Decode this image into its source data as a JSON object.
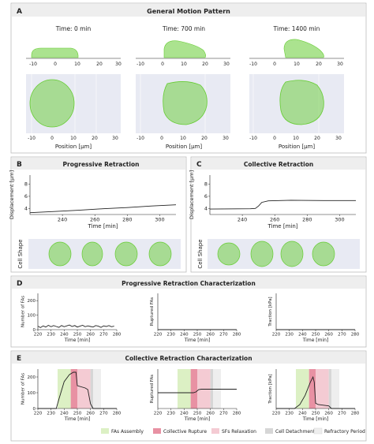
{
  "panels": {
    "A": {
      "letter": "A",
      "title": "General Motion Pattern",
      "snapshots": [
        {
          "time_label": "Time: 0 min"
        },
        {
          "time_label": "Time: 700 min"
        },
        {
          "time_label": "Time: 1400 min"
        }
      ],
      "side_ticks": [
        "-10",
        "0",
        "10",
        "20",
        "30"
      ],
      "top_ticks": [
        "-10",
        "0",
        "10",
        "20",
        "30"
      ],
      "xlabel": "Position [μm]"
    },
    "B": {
      "letter": "B",
      "title": "Progressive Retraction",
      "cell_shape_label": "Cell Shape"
    },
    "C": {
      "letter": "C",
      "title": "Collective Retraction",
      "cell_shape_label": "Cell Shape"
    },
    "D": {
      "letter": "D",
      "title": "Progressive Retraction Characterization"
    },
    "E": {
      "letter": "E",
      "title": "Collective Retraction Characterization"
    }
  },
  "legend": [
    {
      "label": "FAs Assembly",
      "color": "#dcf0c4"
    },
    {
      "label": "Collective Rupture",
      "color": "#e891a3"
    },
    {
      "label": "SFs Relaxation",
      "color": "#f4cbd3"
    },
    {
      "label": "Cell Detachment",
      "color": "#d6d6d6"
    },
    {
      "label": "Refractory Period",
      "color": "#eeeeee"
    }
  ],
  "colors": {
    "cell": "#66cc33",
    "band": "#e8eaf3",
    "line": "#222222"
  },
  "chart_data": [
    {
      "id": "B-disp",
      "type": "line",
      "title": "",
      "xlabel": "Time [min]",
      "ylabel": "Displacement [μm]",
      "xlim": [
        220,
        310
      ],
      "ylim": [
        3,
        9.5
      ],
      "xticks": [
        240,
        260,
        280,
        300
      ],
      "yticks": [
        4,
        6,
        8
      ],
      "x": [
        220,
        235,
        250,
        265,
        280,
        295,
        310
      ],
      "y": [
        3.3,
        3.5,
        3.7,
        3.95,
        4.15,
        4.4,
        4.6
      ]
    },
    {
      "id": "C-disp",
      "type": "line",
      "title": "",
      "xlabel": "Time [min]",
      "ylabel": "Displacement [μm]",
      "xlim": [
        220,
        310
      ],
      "ylim": [
        3,
        9.5
      ],
      "xticks": [
        240,
        260,
        280,
        300
      ],
      "yticks": [
        4,
        6,
        8
      ],
      "x": [
        220,
        245,
        248,
        250,
        252,
        256,
        270,
        290,
        310
      ],
      "y": [
        3.9,
        3.95,
        4.0,
        4.4,
        5.0,
        5.25,
        5.35,
        5.3,
        5.3
      ]
    },
    {
      "id": "D-fas",
      "type": "line",
      "title": "",
      "xlabel": "Time [min]",
      "ylabel": "Number of FAs",
      "xlim": [
        220,
        280
      ],
      "ylim": [
        0,
        250
      ],
      "xticks": [
        220,
        230,
        240,
        250,
        260,
        270,
        280
      ],
      "yticks": [
        0,
        100,
        200
      ],
      "x": [
        220,
        222,
        224,
        226,
        228,
        230,
        232,
        234,
        236,
        238,
        240,
        242,
        244,
        246,
        248,
        250,
        252,
        254,
        256,
        258,
        260,
        262,
        264,
        266,
        268,
        270,
        272,
        274,
        276,
        278
      ],
      "y": [
        24,
        14,
        26,
        18,
        30,
        20,
        28,
        22,
        16,
        28,
        20,
        26,
        32,
        22,
        28,
        18,
        24,
        30,
        20,
        26,
        22,
        18,
        28,
        24,
        16,
        26,
        22,
        28,
        20,
        24
      ]
    },
    {
      "id": "D-rup",
      "type": "line",
      "title": "",
      "xlabel": "Time [min]",
      "ylabel": "Ruptured FAs",
      "xlim": [
        220,
        280
      ],
      "ylim": [
        0,
        400
      ],
      "xticks": [
        220,
        230,
        240,
        250,
        260,
        270,
        280
      ],
      "yticks": [],
      "x": [
        220,
        280
      ],
      "y": [
        0,
        0
      ]
    },
    {
      "id": "D-tr",
      "type": "line",
      "title": "",
      "xlabel": "Time [min]",
      "ylabel": "Traction [kPa]",
      "xlim": [
        220,
        280
      ],
      "ylim": [
        0,
        30
      ],
      "xticks": [
        220,
        230,
        240,
        250,
        260,
        270,
        280
      ],
      "yticks": [],
      "x": [
        220,
        280
      ],
      "y": [
        0,
        0
      ]
    },
    {
      "id": "E-fas",
      "type": "line",
      "title": "",
      "xlabel": "Time [min]",
      "ylabel": "Number of FAs",
      "xlim": [
        220,
        280
      ],
      "ylim": [
        0,
        250
      ],
      "xticks": [
        220,
        230,
        240,
        250,
        260,
        270,
        280
      ],
      "yticks": [
        0,
        100,
        200
      ],
      "phases": [
        {
          "start": 235,
          "end": 245,
          "phase": "FAs Assembly"
        },
        {
          "start": 245,
          "end": 250,
          "phase": "Collective Rupture"
        },
        {
          "start": 250,
          "end": 260,
          "phase": "SFs Relaxation"
        },
        {
          "start": 260,
          "end": 262,
          "phase": "Cell Detachment"
        },
        {
          "start": 262,
          "end": 268,
          "phase": "Refractory Period"
        }
      ],
      "x": [
        220,
        234,
        236,
        240,
        244,
        247,
        249,
        250,
        256,
        258,
        260,
        262,
        280
      ],
      "y": [
        0,
        0,
        60,
        170,
        215,
        230,
        230,
        145,
        130,
        120,
        30,
        0,
        0
      ]
    },
    {
      "id": "E-rup",
      "type": "line",
      "title": "",
      "xlabel": "Time [min]",
      "ylabel": "Ruptured FAs",
      "xlim": [
        220,
        280
      ],
      "ylim": [
        0,
        1000
      ],
      "xticks": [
        220,
        230,
        240,
        250,
        260,
        270,
        280
      ],
      "yticks": [],
      "phases": [
        {
          "start": 235,
          "end": 245,
          "phase": "FAs Assembly"
        },
        {
          "start": 245,
          "end": 250,
          "phase": "Collective Rupture"
        },
        {
          "start": 250,
          "end": 260,
          "phase": "SFs Relaxation"
        },
        {
          "start": 260,
          "end": 262,
          "phase": "Cell Detachment"
        },
        {
          "start": 262,
          "end": 268,
          "phase": "Refractory Period"
        }
      ],
      "x": [
        220,
        247,
        249,
        251,
        253,
        280
      ],
      "y": [
        400,
        400,
        420,
        480,
        490,
        490
      ]
    },
    {
      "id": "E-tr",
      "type": "line",
      "title": "",
      "xlabel": "Time [min]",
      "ylabel": "Traction [kPa]",
      "xlim": [
        220,
        280
      ],
      "ylim": [
        0,
        30
      ],
      "xticks": [
        220,
        230,
        240,
        250,
        260,
        270,
        280
      ],
      "yticks": [],
      "phases": [
        {
          "start": 235,
          "end": 245,
          "phase": "FAs Assembly"
        },
        {
          "start": 245,
          "end": 250,
          "phase": "Collective Rupture"
        },
        {
          "start": 250,
          "end": 260,
          "phase": "SFs Relaxation"
        },
        {
          "start": 260,
          "end": 262,
          "phase": "Cell Detachment"
        },
        {
          "start": 262,
          "end": 268,
          "phase": "Refractory Period"
        }
      ],
      "x": [
        220,
        234,
        238,
        242,
        246,
        248,
        249,
        250,
        252,
        256,
        260,
        262,
        280
      ],
      "y": [
        0,
        0,
        3,
        10,
        20,
        24,
        20,
        4,
        3,
        2.5,
        2,
        0,
        0
      ]
    }
  ]
}
